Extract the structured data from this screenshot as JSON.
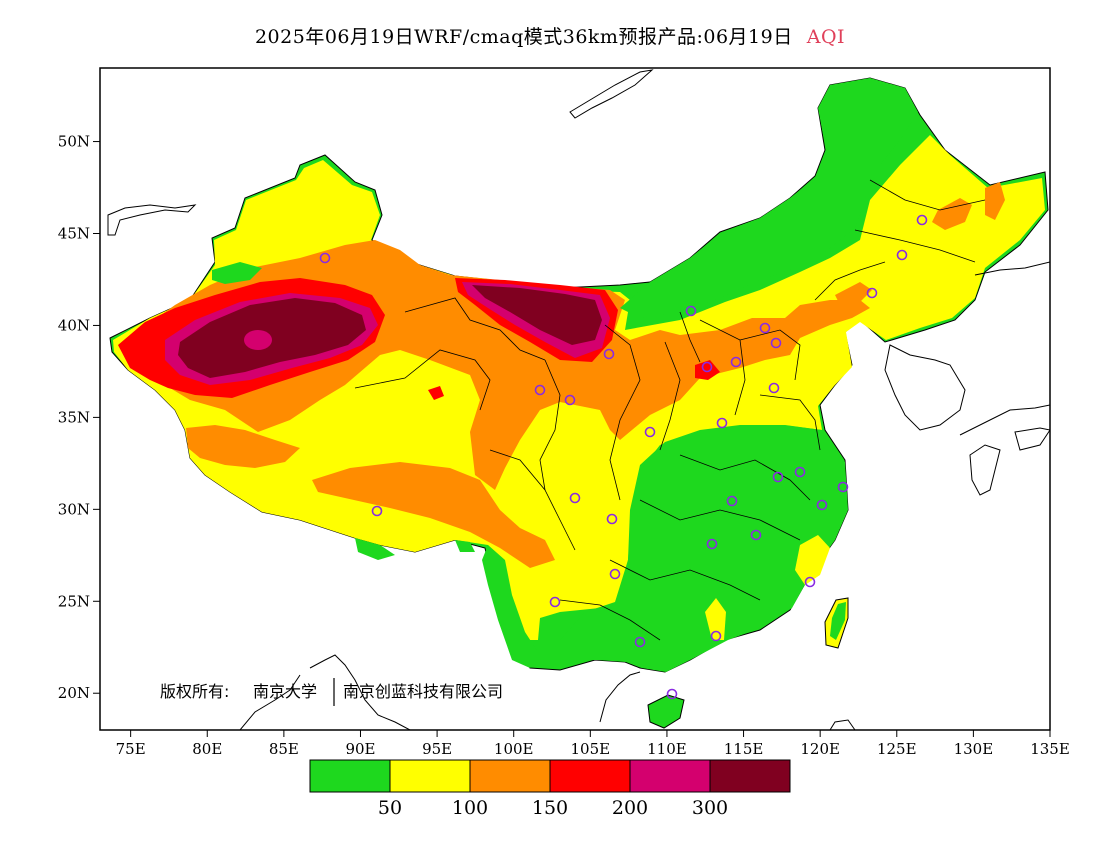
{
  "title": {
    "main": "2025年06月19日WRF/cmaq模式36km预报产品:06月19日",
    "product": "AQI"
  },
  "copyright": {
    "prefix": "版权所有:",
    "org1": "南京大学",
    "org2": "南京创蓝科技有限公司"
  },
  "axes": {
    "x_ticks": [
      "75E",
      "80E",
      "85E",
      "90E",
      "95E",
      "100E",
      "105E",
      "110E",
      "115E",
      "120E",
      "125E",
      "130E",
      "135E"
    ],
    "y_ticks": [
      "20N",
      "25N",
      "30N",
      "35N",
      "40N",
      "45N",
      "50N"
    ],
    "lon_range": [
      73,
      135
    ],
    "lat_range": [
      18,
      54
    ]
  },
  "legend": {
    "colors": [
      "#1ed81e",
      "#ffff00",
      "#ff8c00",
      "#ff0000",
      "#d4006e",
      "#800020"
    ],
    "thresholds": [
      "50",
      "100",
      "150",
      "200",
      "300"
    ]
  },
  "colors": {
    "good": "#1ed81e",
    "moderate": "#ffff00",
    "usg": "#ff8c00",
    "unhealthy": "#ff0000",
    "very_unhealthy": "#d4006e",
    "hazardous": "#800020",
    "station_marker": "#8a2be2",
    "title_product": "#e0405a"
  },
  "icons": {
    "station": "circle-outline"
  }
}
